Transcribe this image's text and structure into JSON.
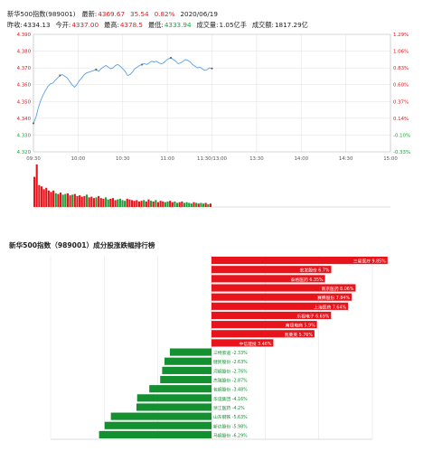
{
  "header": {
    "row1": [
      {
        "label": "新华500指数(989001)",
        "value": "",
        "cls": ""
      },
      {
        "label": "最新:",
        "value": "4369.67",
        "cls": "red"
      },
      {
        "label": "",
        "value": "35.54",
        "cls": "red"
      },
      {
        "label": "",
        "value": "0.82%",
        "cls": "red"
      },
      {
        "label": "",
        "value": "2020/06/19",
        "cls": ""
      }
    ],
    "row2": [
      {
        "label": "昨收:",
        "value": "4334.13",
        "cls": ""
      },
      {
        "label": "今开:",
        "value": "4337.00",
        "cls": "red"
      },
      {
        "label": "最高:",
        "value": "4378.5",
        "cls": "red"
      },
      {
        "label": "最低:",
        "value": "4333.94",
        "cls": "grn"
      },
      {
        "label": "成交量:",
        "value": "1.05亿手",
        "cls": ""
      },
      {
        "label": "成交额:",
        "value": "1817.29亿",
        "cls": ""
      }
    ]
  },
  "colors": {
    "up": "#e8141b",
    "down": "#1aa03a",
    "price_line": "#5aa0e6",
    "grid": "#e6e6e6"
  },
  "chart_data": [
    {
      "type": "line",
      "y_left_ticks": [
        "4.390",
        "4.380",
        "4.370",
        "4.360",
        "4.350",
        "4.340",
        "4.330",
        "4.320"
      ],
      "y_right_ticks": [
        "1.29%",
        "1.06%",
        "0.83%",
        "0.60%",
        "0.37%",
        "0.14%",
        "-0.10%",
        "-0.33%"
      ],
      "ylim": [
        4320,
        4390
      ],
      "x_ticks": [
        "09:30",
        "10:00",
        "10:30",
        "11:00",
        "11:30/13:00",
        "13:30",
        "14:00",
        "14:30",
        "15:00"
      ],
      "prev_close": 4334.13,
      "series": [
        {
          "values": [
            4337.0,
            4340.5,
            4346.0,
            4350.5,
            4354.0,
            4356.5,
            4359.0,
            4360.5,
            4361.0,
            4362.5,
            4364.0,
            4365.5,
            4366.0,
            4365.0,
            4364.0,
            4362.0,
            4360.0,
            4358.5,
            4360.0,
            4362.5,
            4364.0,
            4366.0,
            4367.0,
            4367.5,
            4368.0,
            4368.5,
            4369.0,
            4368.0,
            4369.5,
            4370.5,
            4371.5,
            4370.5,
            4369.5,
            4370.0,
            4371.5,
            4372.0,
            4371.0,
            4369.5,
            4368.0,
            4365.5,
            4366.0,
            4367.5,
            4369.5,
            4370.5,
            4371.5,
            4372.0,
            4372.5,
            4372.0,
            4373.0,
            4374.0,
            4373.5,
            4374.0,
            4373.0,
            4372.5,
            4373.0,
            4374.5,
            4375.5,
            4376.0,
            4375.0,
            4374.0,
            4372.5,
            4373.0,
            4374.0,
            4375.0,
            4374.5,
            4373.5,
            4372.0,
            4371.0,
            4370.0,
            4370.5,
            4369.5,
            4368.5,
            4369.0,
            4370.0,
            4369.67
          ]
        }
      ]
    },
    {
      "type": "bar",
      "values": [
        2.2,
        3.1,
        1.6,
        1.5,
        1.3,
        1.4,
        1.2,
        1.1,
        1.2,
        1.0,
        0.95,
        1.05,
        0.9,
        0.95,
        1.0,
        0.85,
        0.9,
        0.95,
        0.8,
        0.85,
        0.75,
        0.8,
        0.9,
        0.7,
        0.75,
        0.65,
        0.7,
        0.8,
        0.65,
        0.6,
        0.7,
        0.55,
        0.6,
        0.65,
        0.5,
        0.55,
        0.6,
        0.5,
        0.45,
        0.6,
        0.55,
        0.5,
        0.45,
        0.5,
        0.4,
        0.45,
        0.5,
        0.4,
        0.55,
        0.45,
        0.4,
        0.5,
        0.35,
        0.45,
        0.4,
        0.35,
        0.4,
        0.45,
        0.35,
        0.4,
        0.3,
        0.35,
        0.4,
        0.3,
        0.35,
        0.3,
        0.25,
        0.35,
        0.3,
        0.25,
        0.3,
        0.25,
        0.3,
        0.2,
        0.25
      ],
      "up": [
        1,
        1,
        1,
        1,
        1,
        1,
        1,
        1,
        1,
        0,
        1,
        1,
        0,
        0,
        1,
        1,
        0,
        1,
        1,
        1,
        1,
        1,
        0,
        1,
        1,
        1,
        0,
        1,
        1,
        1,
        0,
        0,
        1,
        1,
        1,
        0,
        0,
        0,
        0,
        1,
        1,
        1,
        1,
        1,
        1,
        1,
        0,
        1,
        1,
        0,
        1,
        0,
        1,
        1,
        1,
        0,
        0,
        1,
        1,
        0,
        0,
        1,
        1,
        0,
        0,
        0,
        0,
        1,
        0,
        1,
        0,
        0,
        1,
        0,
        1
      ]
    },
    {
      "type": "bar",
      "title": "新华500指数（989001）成分股涨跌幅排行榜",
      "xlim": [
        -9,
        9
      ],
      "items": [
        {
          "name": "三星医疗",
          "value": 9.85
        },
        {
          "name": "宏发股份",
          "value": 6.7
        },
        {
          "name": "泰格医药",
          "value": 6.35
        },
        {
          "name": "南京医药",
          "value": 8.06
        },
        {
          "name": "赛腾股份",
          "value": 7.84
        },
        {
          "name": "上海医药",
          "value": 7.64
        },
        {
          "name": "乐视电子",
          "value": 6.69
        },
        {
          "name": "南极电商",
          "value": 5.9
        },
        {
          "name": "凯莱英",
          "value": 5.76
        },
        {
          "name": "中信建投",
          "value": 3.46
        },
        {
          "name": "三特索道",
          "value": -2.33
        },
        {
          "name": "健民股份",
          "value": -2.63
        },
        {
          "name": "河钢股份",
          "value": -2.76
        },
        {
          "name": "杰瑞股份",
          "value": -2.87
        },
        {
          "name": "包钢股份",
          "value": -3.48
        },
        {
          "name": "华谊集团",
          "value": -4.16
        },
        {
          "name": "浙江医药",
          "value": -4.2
        },
        {
          "name": "山东钢铁",
          "value": -5.63
        },
        {
          "name": "新达股份",
          "value": -5.98
        },
        {
          "name": "马钢股份",
          "value": -6.29
        }
      ]
    }
  ]
}
